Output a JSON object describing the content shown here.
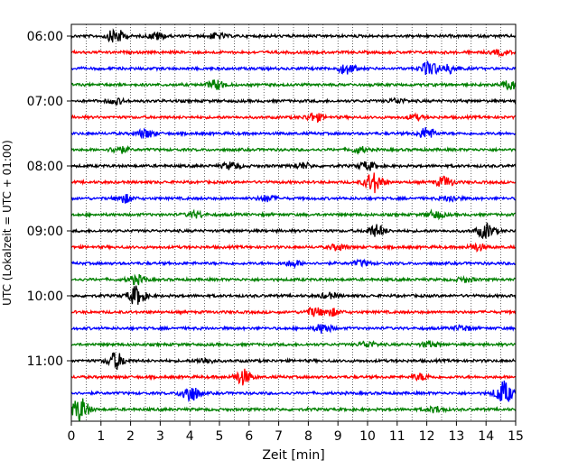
{
  "chart_data": {
    "type": "line",
    "title": "",
    "xlabel": "Zeit  [min]",
    "ylabel": "UTC (Lokalzeit = UTC + 01:00)",
    "xlim": [
      0,
      15
    ],
    "x_ticks": [
      "0",
      "1",
      "2",
      "3",
      "4",
      "5",
      "6",
      "7",
      "8",
      "9",
      "10",
      "11",
      "12",
      "13",
      "14",
      "15"
    ],
    "y_ticks": [
      "06:00",
      "07:00",
      "08:00",
      "09:00",
      "10:00",
      "11:00"
    ],
    "grid": {
      "x_vertical_dotted": true,
      "x_minor_step_min": 0.5
    },
    "line_colors": [
      "#000000",
      "#ff0000",
      "#0000ff",
      "#008000"
    ],
    "trace_interval_min": 15,
    "traces": [
      {
        "start": "06:00",
        "color": "#000000",
        "events": [
          {
            "t": 1.5,
            "amp": 2.5
          },
          {
            "t": 2.9,
            "amp": 1.2
          },
          {
            "t": 4.9,
            "amp": 1.0
          }
        ]
      },
      {
        "start": "06:15",
        "color": "#ff0000",
        "events": [
          {
            "t": 14.5,
            "amp": 0.8
          }
        ]
      },
      {
        "start": "06:30",
        "color": "#0000ff",
        "events": [
          {
            "t": 9.3,
            "amp": 1.8
          },
          {
            "t": 12.1,
            "amp": 2.5
          },
          {
            "t": 12.8,
            "amp": 1.5
          }
        ]
      },
      {
        "start": "06:45",
        "color": "#008000",
        "events": [
          {
            "t": 4.9,
            "amp": 1.6
          },
          {
            "t": 14.8,
            "amp": 1.4
          }
        ]
      },
      {
        "start": "07:00",
        "color": "#000000",
        "events": [
          {
            "t": 1.5,
            "amp": 0.9
          },
          {
            "t": 11.0,
            "amp": 0.8
          }
        ]
      },
      {
        "start": "07:15",
        "color": "#ff0000",
        "events": [
          {
            "t": 8.2,
            "amp": 1.5
          },
          {
            "t": 11.6,
            "amp": 0.8
          }
        ]
      },
      {
        "start": "07:30",
        "color": "#0000ff",
        "events": [
          {
            "t": 2.5,
            "amp": 1.5
          },
          {
            "t": 12.0,
            "amp": 2.0
          }
        ]
      },
      {
        "start": "07:45",
        "color": "#008000",
        "events": [
          {
            "t": 1.6,
            "amp": 1.2
          },
          {
            "t": 9.7,
            "amp": 1.0
          }
        ]
      },
      {
        "start": "08:00",
        "color": "#000000",
        "events": [
          {
            "t": 5.4,
            "amp": 1.2
          },
          {
            "t": 7.8,
            "amp": 1.0
          },
          {
            "t": 10.0,
            "amp": 1.4
          }
        ]
      },
      {
        "start": "08:15",
        "color": "#ff0000",
        "events": [
          {
            "t": 10.2,
            "amp": 3.5
          },
          {
            "t": 12.6,
            "amp": 1.8
          }
        ]
      },
      {
        "start": "08:30",
        "color": "#0000ff",
        "events": [
          {
            "t": 1.8,
            "amp": 1.4
          },
          {
            "t": 6.6,
            "amp": 1.0
          },
          {
            "t": 12.8,
            "amp": 1.0
          }
        ]
      },
      {
        "start": "08:45",
        "color": "#008000",
        "events": [
          {
            "t": 4.2,
            "amp": 1.0
          },
          {
            "t": 12.3,
            "amp": 1.2
          }
        ]
      },
      {
        "start": "09:00",
        "color": "#000000",
        "events": [
          {
            "t": 10.3,
            "amp": 2.0
          },
          {
            "t": 14.0,
            "amp": 2.6
          }
        ]
      },
      {
        "start": "09:15",
        "color": "#ff0000",
        "events": [
          {
            "t": 9.0,
            "amp": 1.0
          },
          {
            "t": 13.7,
            "amp": 1.2
          }
        ]
      },
      {
        "start": "09:30",
        "color": "#0000ff",
        "events": [
          {
            "t": 7.5,
            "amp": 1.0
          },
          {
            "t": 9.8,
            "amp": 0.9
          }
        ]
      },
      {
        "start": "09:45",
        "color": "#008000",
        "events": [
          {
            "t": 2.2,
            "amp": 1.5
          },
          {
            "t": 13.3,
            "amp": 0.8
          }
        ]
      },
      {
        "start": "10:00",
        "color": "#000000",
        "events": [
          {
            "t": 2.2,
            "amp": 3.2
          },
          {
            "t": 8.7,
            "amp": 0.9
          }
        ]
      },
      {
        "start": "10:15",
        "color": "#ff0000",
        "events": [
          {
            "t": 8.2,
            "amp": 1.4
          },
          {
            "t": 8.8,
            "amp": 1.2
          }
        ]
      },
      {
        "start": "10:30",
        "color": "#0000ff",
        "events": [
          {
            "t": 8.5,
            "amp": 1.6
          },
          {
            "t": 13.2,
            "amp": 0.9
          }
        ]
      },
      {
        "start": "10:45",
        "color": "#008000",
        "events": [
          {
            "t": 10.0,
            "amp": 1.0
          },
          {
            "t": 12.1,
            "amp": 0.9
          }
        ]
      },
      {
        "start": "11:00",
        "color": "#000000",
        "events": [
          {
            "t": 1.5,
            "amp": 2.8
          },
          {
            "t": 4.5,
            "amp": 0.9
          }
        ]
      },
      {
        "start": "11:15",
        "color": "#ff0000",
        "events": [
          {
            "t": 5.8,
            "amp": 2.6
          },
          {
            "t": 11.8,
            "amp": 1.0
          }
        ]
      },
      {
        "start": "11:30",
        "color": "#0000ff",
        "events": [
          {
            "t": 4.0,
            "amp": 3.0
          },
          {
            "t": 14.6,
            "amp": 4.0
          }
        ]
      },
      {
        "start": "11:45",
        "color": "#008000",
        "events": [
          {
            "t": 0.3,
            "amp": 4.0
          },
          {
            "t": 12.3,
            "amp": 1.0
          }
        ]
      }
    ]
  }
}
